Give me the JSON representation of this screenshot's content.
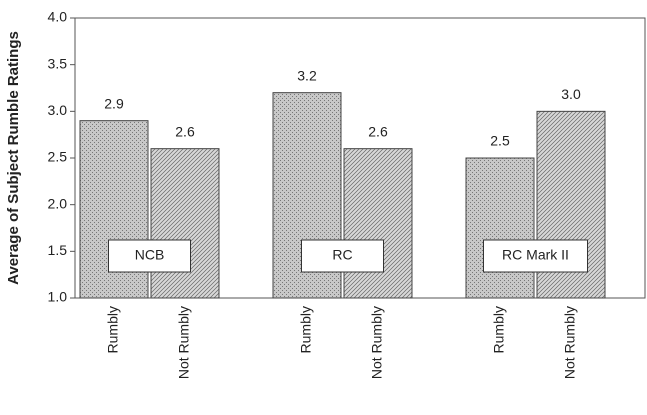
{
  "chart_data": {
    "type": "bar",
    "ylabel": "Average of Subject Rumble Ratings",
    "categories": [
      "NCB",
      "RC",
      "RC Mark II"
    ],
    "series": [
      {
        "name": "Rumbly",
        "color": "#c8c8c8",
        "values": [
          2.9,
          3.2,
          2.5
        ],
        "value_labels": [
          "2.9",
          "3.2",
          "2.5"
        ]
      },
      {
        "name": "Not Rumbly",
        "color": "#d8d8d8",
        "values": [
          2.6,
          2.6,
          3.0
        ],
        "value_labels": [
          "2.6",
          "2.6",
          "3.0"
        ]
      }
    ],
    "ylim": [
      1,
      4
    ],
    "yticks": [
      {
        "value": 1,
        "label": "1.0"
      },
      {
        "value": 1.5,
        "label": "1.5"
      },
      {
        "value": 2,
        "label": "2.0"
      },
      {
        "value": 2.5,
        "label": "2.5"
      },
      {
        "value": 3,
        "label": "3.0"
      },
      {
        "value": 3.5,
        "label": "3.5"
      },
      {
        "value": 4,
        "label": "4.0"
      }
    ],
    "grid": false
  }
}
